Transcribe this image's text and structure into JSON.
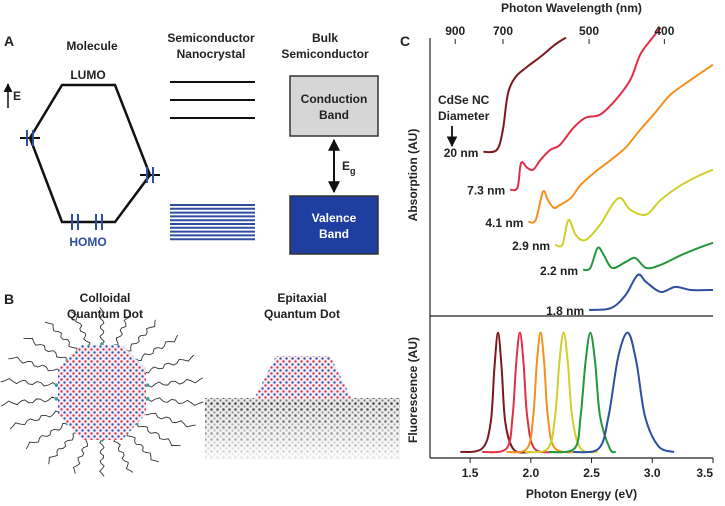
{
  "panel_a": {
    "label": "A",
    "molecule": {
      "title": "Molecule",
      "lumo": "LUMO",
      "homo": "HOMO",
      "energy_axis": "E"
    },
    "nanocrystal": {
      "title": [
        "Semiconductor",
        "Nanocrystal"
      ]
    },
    "bulk": {
      "title": [
        "Bulk",
        "Semiconductor"
      ],
      "conduction_band": [
        "Conduction",
        "Band"
      ],
      "valence_band": [
        "Valence",
        "Band"
      ],
      "gap": {
        "symbol": "E",
        "subscript": "g"
      }
    }
  },
  "panel_b": {
    "label": "B",
    "colloidal": [
      "Colloidal",
      "Quantum Dot"
    ],
    "epitaxial": [
      "Epitaxial",
      "Quantum Dot"
    ]
  },
  "panel_c": {
    "label": "C"
  },
  "chart_data": [
    {
      "type": "line",
      "ylabel": "Absorption (AU)",
      "x2label": "Photon Wavelength (nm)",
      "x2ticks": [
        900,
        700,
        500,
        400
      ],
      "annotation": [
        "CdSe NC",
        "Diameter"
      ],
      "xlim": [
        1.17,
        3.5
      ],
      "ylim": [
        0,
        10.2
      ],
      "series": [
        {
          "name": "20 nm",
          "color": "#7b1a1e",
          "x": [
            1.61,
            1.72,
            1.77,
            1.81,
            1.87,
            1.96,
            2.08,
            2.2,
            2.29
          ],
          "values": [
            5.67,
            5.74,
            6.45,
            7.7,
            8.3,
            8.65,
            9.04,
            9.47,
            9.72
          ]
        },
        {
          "name": "7.3 nm",
          "color": "#e03048",
          "x": [
            1.83,
            1.89,
            1.92,
            1.97,
            2.02,
            2.08,
            2.16,
            2.24,
            2.35,
            2.45,
            2.57,
            2.7,
            2.82,
            2.9,
            2.99,
            3.07
          ],
          "values": [
            4.33,
            4.4,
            5.28,
            5.11,
            5.04,
            5.39,
            5.74,
            5.92,
            6.52,
            6.88,
            6.99,
            7.52,
            8.23,
            9.11,
            9.65,
            10.07
          ]
        },
        {
          "name": "4.1 nm",
          "color": "#f39020",
          "x": [
            1.98,
            2.04,
            2.1,
            2.14,
            2.19,
            2.24,
            2.33,
            2.41,
            2.53,
            2.66,
            2.78,
            2.9,
            3.03,
            3.15,
            3.32,
            3.5
          ],
          "values": [
            3.19,
            3.26,
            4.26,
            3.97,
            3.69,
            3.79,
            4.04,
            4.5,
            4.96,
            5.39,
            5.82,
            6.45,
            7.09,
            7.7,
            8.23,
            8.76
          ]
        },
        {
          "name": "2.9 nm",
          "color": "#cfcf2c",
          "x": [
            2.2,
            2.26,
            2.31,
            2.37,
            2.45,
            2.57,
            2.67,
            2.74,
            2.82,
            2.95,
            3.07,
            3.24,
            3.4,
            3.5
          ],
          "values": [
            2.38,
            2.38,
            3.26,
            2.73,
            2.55,
            3.09,
            3.79,
            4.04,
            3.62,
            3.45,
            3.97,
            4.5,
            4.86,
            5.04
          ]
        },
        {
          "name": "2.2 nm",
          "color": "#23963e",
          "x": [
            2.43,
            2.49,
            2.55,
            2.6,
            2.67,
            2.78,
            2.86,
            2.95,
            3.07,
            3.24,
            3.4,
            3.5
          ],
          "values": [
            1.49,
            1.56,
            2.27,
            2.02,
            1.56,
            1.77,
            1.91,
            1.56,
            1.67,
            2.02,
            2.3,
            2.45
          ]
        },
        {
          "name": "1.8 nm",
          "color": "#2e4ea0",
          "x": [
            2.48,
            2.66,
            2.78,
            2.88,
            2.95,
            3.07,
            3.19,
            3.32,
            3.5
          ],
          "values": [
            0.07,
            0.14,
            0.6,
            1.31,
            1.06,
            0.71,
            0.89,
            0.78,
            0.78
          ]
        }
      ]
    },
    {
      "type": "line",
      "ylabel": "Fluorescence (AU)",
      "xlabel": "Photon Energy (eV)",
      "xlim": [
        1.17,
        3.5
      ],
      "ylim": [
        -0.05,
        1.09
      ],
      "xticks": [
        1.5,
        {
          "value": 2,
          "label": "2.0"
        },
        2.5,
        {
          "value": 3,
          "label": "3.0"
        },
        3.5
      ],
      "series": [
        {
          "color": "#7b1a1e",
          "x": [
            1.42,
            1.6,
            1.67,
            1.7,
            1.73,
            1.76,
            1.79,
            1.86,
            2.0
          ],
          "values": [
            0,
            0.03,
            0.25,
            0.7,
            1.0,
            0.7,
            0.25,
            0.02,
            0
          ]
        },
        {
          "color": "#e03048",
          "x": [
            1.6,
            1.8,
            1.85,
            1.88,
            1.91,
            1.94,
            1.97,
            2.03,
            2.2
          ],
          "values": [
            0,
            0.03,
            0.3,
            0.75,
            1.0,
            0.75,
            0.3,
            0.03,
            0
          ]
        },
        {
          "color": "#f39020",
          "x": [
            1.8,
            1.97,
            2.02,
            2.05,
            2.08,
            2.11,
            2.14,
            2.2,
            2.4
          ],
          "values": [
            0,
            0.03,
            0.3,
            0.75,
            1.0,
            0.75,
            0.3,
            0.03,
            0
          ]
        },
        {
          "color": "#cfcf2c",
          "x": [
            1.95,
            2.14,
            2.2,
            2.235,
            2.27,
            2.305,
            2.34,
            2.41,
            2.55
          ],
          "values": [
            0,
            0.03,
            0.3,
            0.75,
            1.0,
            0.75,
            0.3,
            0.03,
            0
          ]
        },
        {
          "color": "#23963e",
          "x": [
            2.15,
            2.36,
            2.41,
            2.45,
            2.49,
            2.53,
            2.57,
            2.65,
            2.7
          ],
          "values": [
            0,
            0.03,
            0.3,
            0.75,
            1.0,
            0.75,
            0.3,
            0.03,
            0
          ]
        },
        {
          "color": "#2e4ea0",
          "x": [
            2.35,
            2.56,
            2.64,
            2.72,
            2.8,
            2.87,
            2.94,
            3.05,
            3.18
          ],
          "values": [
            0,
            0.03,
            0.3,
            0.8,
            1.0,
            0.75,
            0.3,
            0.05,
            0
          ]
        }
      ]
    }
  ]
}
